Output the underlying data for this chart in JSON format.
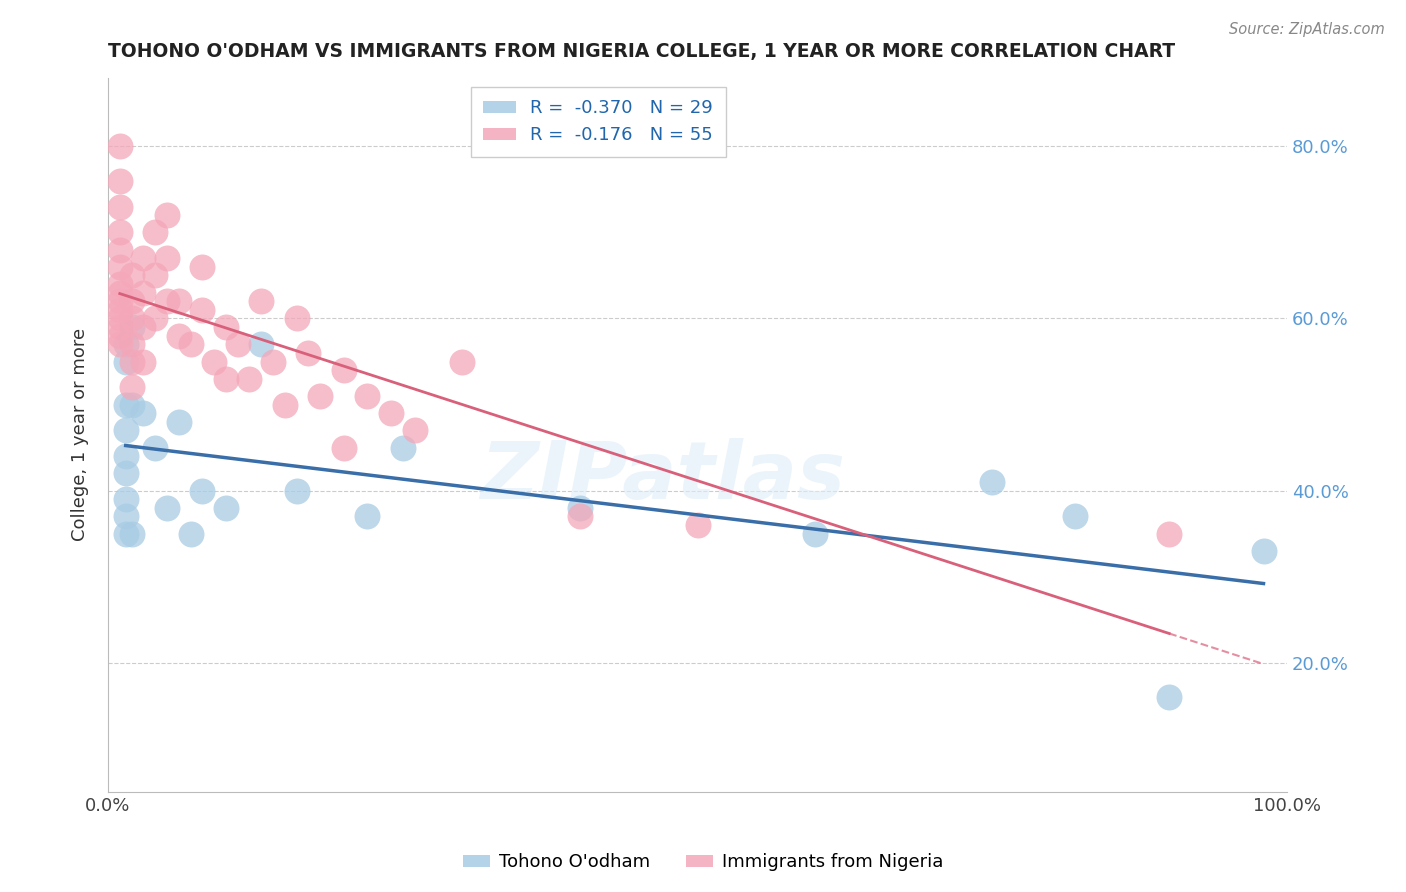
{
  "title": "TOHONO O'ODHAM VS IMMIGRANTS FROM NIGERIA COLLEGE, 1 YEAR OR MORE CORRELATION CHART",
  "source": "Source: ZipAtlas.com",
  "ylabel": "College, 1 year or more",
  "xlim": [
    0,
    1.0
  ],
  "ylim": [
    0.05,
    0.88
  ],
  "legend_r1": "R =  -0.370",
  "legend_n1": "N = 29",
  "legend_r2": "R =  -0.176",
  "legend_n2": "N = 55",
  "blue_color": "#a8cce4",
  "pink_color": "#f4a7b9",
  "line_blue": "#3a6ea8",
  "line_pink": "#d9607a",
  "watermark": "ZIPatlas",
  "blue_scatter": [
    [
      0.015,
      0.57
    ],
    [
      0.015,
      0.55
    ],
    [
      0.015,
      0.5
    ],
    [
      0.015,
      0.47
    ],
    [
      0.015,
      0.44
    ],
    [
      0.015,
      0.42
    ],
    [
      0.015,
      0.39
    ],
    [
      0.015,
      0.37
    ],
    [
      0.015,
      0.35
    ],
    [
      0.02,
      0.59
    ],
    [
      0.02,
      0.5
    ],
    [
      0.02,
      0.35
    ],
    [
      0.03,
      0.49
    ],
    [
      0.04,
      0.45
    ],
    [
      0.05,
      0.38
    ],
    [
      0.06,
      0.48
    ],
    [
      0.07,
      0.35
    ],
    [
      0.08,
      0.4
    ],
    [
      0.1,
      0.38
    ],
    [
      0.13,
      0.57
    ],
    [
      0.16,
      0.4
    ],
    [
      0.22,
      0.37
    ],
    [
      0.25,
      0.45
    ],
    [
      0.4,
      0.38
    ],
    [
      0.6,
      0.35
    ],
    [
      0.75,
      0.41
    ],
    [
      0.82,
      0.37
    ],
    [
      0.9,
      0.16
    ],
    [
      0.98,
      0.33
    ]
  ],
  "pink_scatter": [
    [
      0.01,
      0.8
    ],
    [
      0.01,
      0.76
    ],
    [
      0.01,
      0.73
    ],
    [
      0.01,
      0.7
    ],
    [
      0.01,
      0.68
    ],
    [
      0.01,
      0.66
    ],
    [
      0.01,
      0.64
    ],
    [
      0.01,
      0.63
    ],
    [
      0.01,
      0.62
    ],
    [
      0.01,
      0.61
    ],
    [
      0.01,
      0.6
    ],
    [
      0.01,
      0.59
    ],
    [
      0.01,
      0.58
    ],
    [
      0.01,
      0.57
    ],
    [
      0.02,
      0.65
    ],
    [
      0.02,
      0.62
    ],
    [
      0.02,
      0.6
    ],
    [
      0.02,
      0.57
    ],
    [
      0.02,
      0.55
    ],
    [
      0.02,
      0.52
    ],
    [
      0.03,
      0.67
    ],
    [
      0.03,
      0.63
    ],
    [
      0.03,
      0.59
    ],
    [
      0.03,
      0.55
    ],
    [
      0.04,
      0.7
    ],
    [
      0.04,
      0.65
    ],
    [
      0.04,
      0.6
    ],
    [
      0.05,
      0.72
    ],
    [
      0.05,
      0.67
    ],
    [
      0.05,
      0.62
    ],
    [
      0.06,
      0.62
    ],
    [
      0.06,
      0.58
    ],
    [
      0.07,
      0.57
    ],
    [
      0.08,
      0.66
    ],
    [
      0.08,
      0.61
    ],
    [
      0.09,
      0.55
    ],
    [
      0.1,
      0.59
    ],
    [
      0.1,
      0.53
    ],
    [
      0.11,
      0.57
    ],
    [
      0.12,
      0.53
    ],
    [
      0.13,
      0.62
    ],
    [
      0.14,
      0.55
    ],
    [
      0.15,
      0.5
    ],
    [
      0.16,
      0.6
    ],
    [
      0.17,
      0.56
    ],
    [
      0.18,
      0.51
    ],
    [
      0.2,
      0.54
    ],
    [
      0.2,
      0.45
    ],
    [
      0.22,
      0.51
    ],
    [
      0.24,
      0.49
    ],
    [
      0.26,
      0.47
    ],
    [
      0.3,
      0.55
    ],
    [
      0.4,
      0.37
    ],
    [
      0.5,
      0.36
    ],
    [
      0.9,
      0.35
    ]
  ]
}
